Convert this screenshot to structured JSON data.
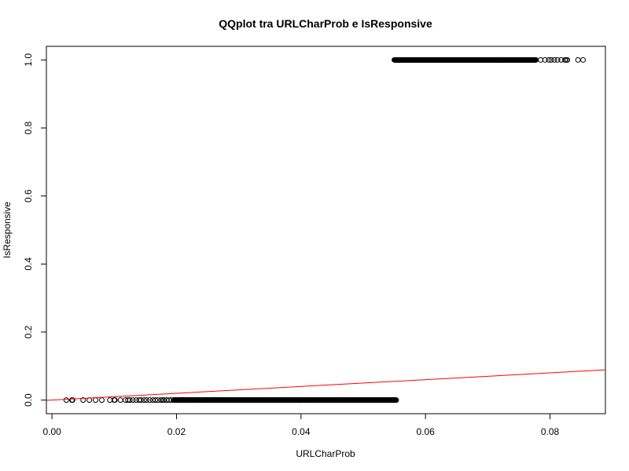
{
  "chart_data": {
    "type": "scatter",
    "title": "QQplot tra URLCharProb e IsResponsive",
    "xlabel": "URLCharProb",
    "ylabel": "IsResponsive",
    "xlim": [
      -0.0009,
      0.0889
    ],
    "ylim": [
      -0.04,
      1.04
    ],
    "x_ticks": [
      0.0,
      0.02,
      0.04,
      0.06,
      0.08
    ],
    "x_tick_labels": [
      "0.00",
      "0.02",
      "0.04",
      "0.06",
      "0.08"
    ],
    "y_ticks": [
      0.0,
      0.2,
      0.4,
      0.6,
      0.8,
      1.0
    ],
    "y_tick_labels": [
      "0.0",
      "0.2",
      "0.4",
      "0.6",
      "0.8",
      "1.0"
    ],
    "grid": false,
    "marker": "open-circle",
    "series": [
      {
        "group": 0,
        "x": [
          0.0023,
          0.0032,
          0.0033,
          0.005,
          0.006,
          0.007,
          0.008,
          0.0093,
          0.01,
          0.0101,
          0.011,
          0.0118,
          0.0122,
          0.0125,
          0.013,
          0.0135,
          0.014,
          0.0143,
          0.0148,
          0.0152,
          0.0157,
          0.0162,
          0.0166,
          0.017,
          0.0175,
          0.0178,
          0.018,
          0.0184,
          0.0188,
          0.0192,
          0.0196
        ],
        "y": [
          0,
          0,
          0,
          0,
          0,
          0,
          0,
          0,
          0,
          0,
          0,
          0,
          0,
          0,
          0,
          0,
          0,
          0,
          0,
          0,
          0,
          0,
          0,
          0,
          0,
          0,
          0,
          0,
          0,
          0,
          0
        ],
        "dense_range": [
          0.0196,
          0.0553
        ],
        "y_value": 0
      },
      {
        "group": 1,
        "dense_range": [
          0.055,
          0.0778
        ],
        "y_value": 1,
        "x": [
          0.0785,
          0.0792,
          0.0798,
          0.0802,
          0.0807,
          0.0812,
          0.0818,
          0.0824,
          0.0826,
          0.0828,
          0.0845,
          0.0853
        ],
        "y": [
          1,
          1,
          1,
          1,
          1,
          1,
          1,
          1,
          1,
          1,
          1,
          1
        ]
      }
    ],
    "reference_line": {
      "color": "#ff0000",
      "points": [
        [
          -0.001,
          -0.001
        ],
        [
          0.0889,
          0.0889
        ]
      ]
    },
    "colors": {
      "points": "#000000",
      "line": "#ff0000",
      "axis": "#000000",
      "background": "#ffffff"
    }
  }
}
